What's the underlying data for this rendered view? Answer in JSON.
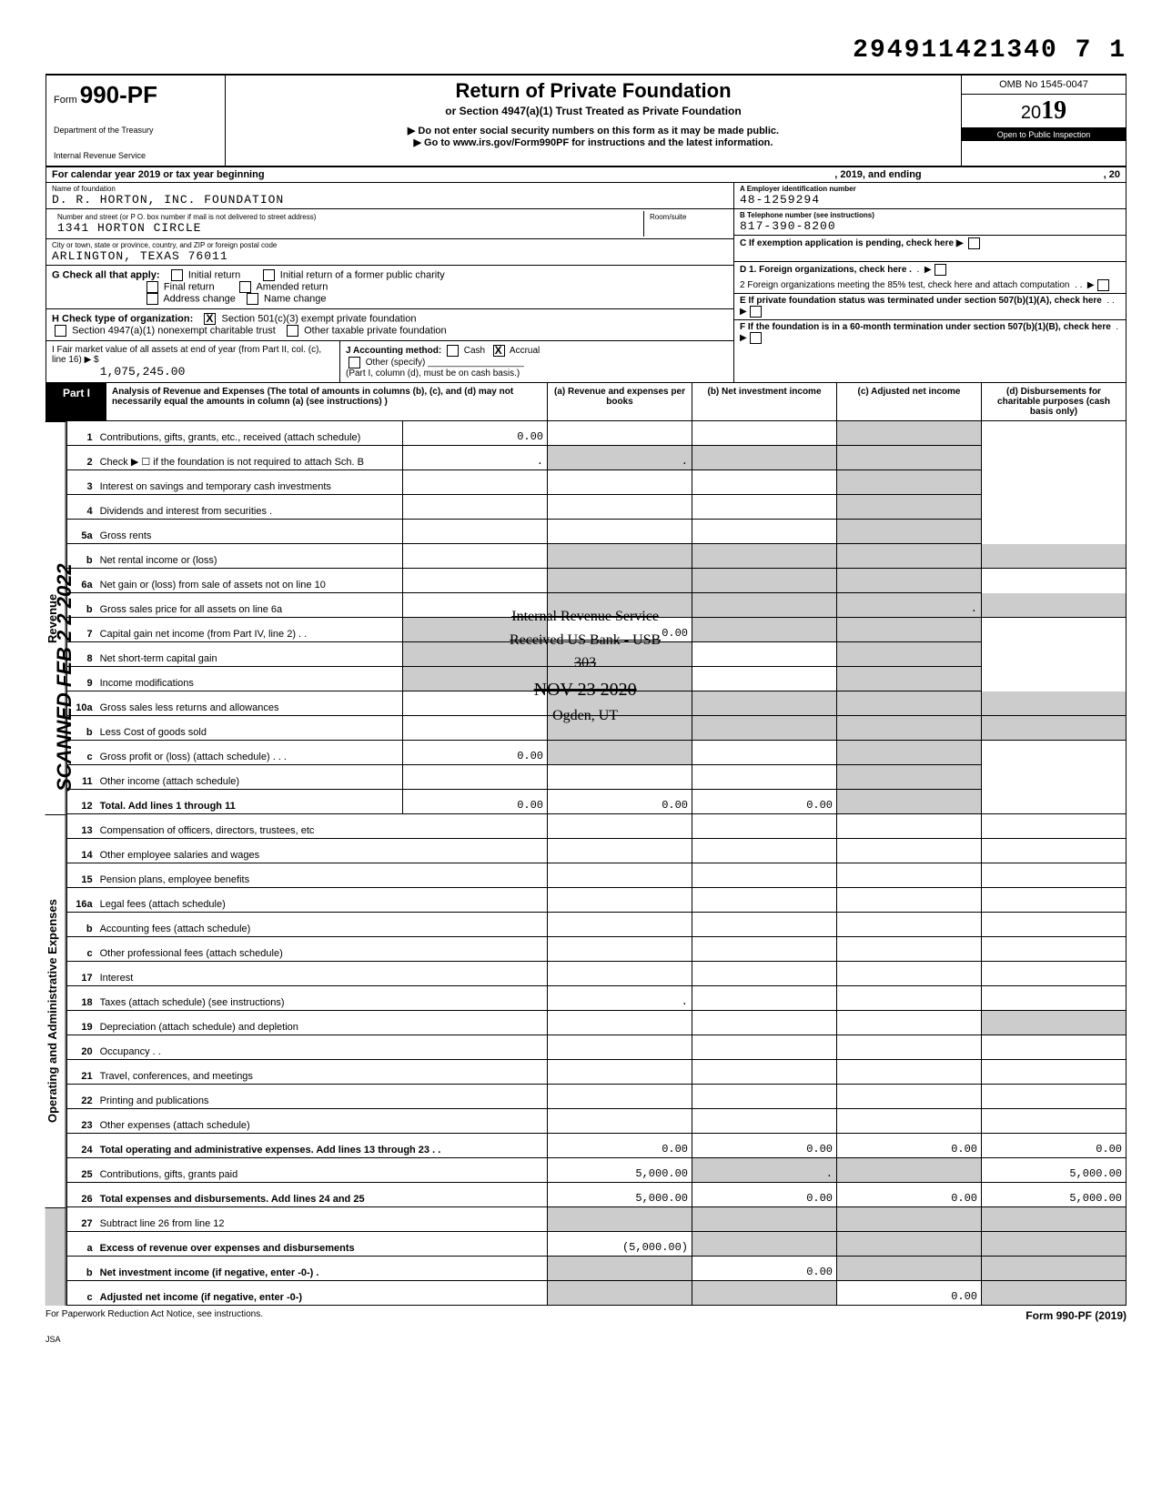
{
  "dln": "294911421340 7 1",
  "header": {
    "form_label": "Form",
    "form_no": "990-PF",
    "dept1": "Department of the Treasury",
    "dept2": "Internal Revenue Service",
    "title": "Return of Private Foundation",
    "subtitle": "or Section 4947(a)(1) Trust Treated as Private Foundation",
    "warn": "▶ Do not enter social security numbers on this form as it may be made public.",
    "goto": "▶ Go to www.irs.gov/Form990PF for instructions and the latest information.",
    "omb": "OMB No 1545-0047",
    "year_prefix": "20",
    "year_bold": "19",
    "open": "Open to Public Inspection"
  },
  "cal": {
    "a": "For calendar year 2019 or tax year beginning",
    "b": ", 2019, and ending",
    "c": ", 20"
  },
  "idblock": {
    "name_lbl": "Name of foundation",
    "name": "D. R. HORTON, INC. FOUNDATION",
    "addr_lbl": "Number and street (or P O. box number if mail is not delivered to street address)",
    "room_lbl": "Room/suite",
    "addr": "1341 HORTON CIRCLE",
    "city_lbl": "City or town, state or province, country, and ZIP or foreign postal code",
    "city": "ARLINGTON, TEXAS  76011",
    "ein_lbl": "A  Employer identification number",
    "ein": "48-1259294",
    "tel_lbl": "B  Telephone number (see instructions)",
    "tel": "817-390-8200",
    "c_lbl": "C  If exemption application is pending, check here ▶"
  },
  "g": {
    "lead": "G   Check all that apply:",
    "o1": "Initial return",
    "o2": "Initial return of a former public charity",
    "o3": "Final return",
    "o4": "Amended return",
    "o5": "Address change",
    "o6": "Name change"
  },
  "h": {
    "lead": "H   Check type of organization:",
    "o1": "Section 501(c)(3) exempt private foundation",
    "o2": "Section 4947(a)(1) nonexempt charitable trust",
    "o3": "Other taxable private foundation"
  },
  "i": {
    "lead": "I    Fair market value of all assets at end of year (from Part II, col. (c), line 16) ▶ $",
    "val": "1,075,245.00",
    "j": "J   Accounting method:",
    "j1": "Cash",
    "j2": "Accrual",
    "j3": "Other (specify)",
    "jnote": "(Part I, column (d), must be on cash basis.)"
  },
  "right_d": {
    "d1": "D  1. Foreign organizations, check here .",
    "d2": "2  Foreign organizations meeting the 85% test, check here and attach computation",
    "e": "E   If private foundation status was terminated under section 507(b)(1)(A), check here",
    "f": "F   If the foundation is in a 60-month termination under section 507(b)(1)(B), check here"
  },
  "p1": {
    "part": "Part I",
    "desc": "Analysis of Revenue and Expenses (The total of amounts in columns (b), (c), and (d) may not necessarily equal the amounts in column (a) (see instructions) )",
    "cols": [
      "(a) Revenue and expenses per books",
      "(b) Net investment income",
      "(c) Adjusted net income",
      "(d) Disbursements for charitable purposes (cash basis only)"
    ]
  },
  "rows": [
    {
      "n": "1",
      "l": "Contributions, gifts, grants, etc., received (attach schedule)",
      "a": "0.00",
      "b": "",
      "c": "",
      "d": "",
      "shade_d": true
    },
    {
      "n": "2",
      "l": "Check ▶ ☐ if the foundation is not required to attach Sch. B",
      "a": ".",
      "b": ".",
      "c": "",
      "d": "",
      "shade_bcd": true
    },
    {
      "n": "3",
      "l": "Interest on savings and temporary cash investments",
      "a": "",
      "b": "",
      "c": "",
      "d": "",
      "shade_d": true
    },
    {
      "n": "4",
      "l": "Dividends and interest from securities  .",
      "a": "",
      "b": "",
      "c": "",
      "d": "",
      "shade_d": true
    },
    {
      "n": "5a",
      "l": "Gross rents",
      "a": "",
      "b": "",
      "c": "",
      "d": "",
      "shade_d": true
    },
    {
      "n": "b",
      "l": "Net rental income or (loss)",
      "sub": "",
      "shade_abcd": true
    },
    {
      "n": "6a",
      "l": "Net gain or (loss) from sale of assets not on line 10",
      "a": "",
      "b": "",
      "c": "",
      "d": "",
      "shade_bcd": true
    },
    {
      "n": "b",
      "l": "Gross sales price for all assets on line 6a",
      "sub": "",
      "shade_abcd": true,
      "c": ".",
      "shade_b": false
    },
    {
      "n": "7",
      "l": "Capital gain net income (from Part IV, line 2)   .   .",
      "a": "",
      "b": "0.00",
      "c": "",
      "d": "",
      "shade_a": true,
      "shade_cd": true
    },
    {
      "n": "8",
      "l": "Net short-term capital gain",
      "a": "",
      "b": "",
      "c": "",
      "d": "",
      "shade_ab": true,
      "shade_d": true
    },
    {
      "n": "9",
      "l": "Income modifications",
      "a": "",
      "b": "",
      "c": "",
      "d": "",
      "shade_ab": true,
      "shade_d": true
    },
    {
      "n": "10a",
      "l": "Gross sales less returns and allowances",
      "sub": "",
      "shade_abcd": true
    },
    {
      "n": "b",
      "l": "Less  Cost of goods sold",
      "sub": "",
      "shade_abcd": true
    },
    {
      "n": "c",
      "l": "Gross profit or (loss) (attach schedule)   .   .   .",
      "a": "0.00",
      "b": "",
      "c": "",
      "d": "",
      "shade_b": true,
      "shade_d": true
    },
    {
      "n": "11",
      "l": "Other income (attach schedule)",
      "a": "",
      "b": "",
      "c": "",
      "d": "",
      "shade_d": true
    },
    {
      "n": "12",
      "l": "Total. Add lines 1 through 11",
      "a": "0.00",
      "b": "0.00",
      "c": "0.00",
      "d": "",
      "bold": true,
      "shade_d": true
    }
  ],
  "exp_rows": [
    {
      "n": "13",
      "l": "Compensation of officers, directors, trustees, etc"
    },
    {
      "n": "14",
      "l": "Other employee salaries and wages"
    },
    {
      "n": "15",
      "l": "Pension plans, employee benefits"
    },
    {
      "n": "16a",
      "l": "Legal fees (attach schedule)"
    },
    {
      "n": "b",
      "l": "Accounting fees (attach schedule)"
    },
    {
      "n": "c",
      "l": "Other professional fees (attach schedule)"
    },
    {
      "n": "17",
      "l": "Interest"
    },
    {
      "n": "18",
      "l": "Taxes (attach schedule) (see instructions)",
      "a": "."
    },
    {
      "n": "19",
      "l": "Depreciation (attach schedule) and depletion",
      "shade_d": true
    },
    {
      "n": "20",
      "l": "Occupancy  .   ."
    },
    {
      "n": "21",
      "l": "Travel, conferences, and meetings"
    },
    {
      "n": "22",
      "l": "Printing and publications"
    },
    {
      "n": "23",
      "l": "Other expenses (attach schedule)"
    },
    {
      "n": "24",
      "l": "Total operating and administrative expenses. Add lines 13 through 23 .  .",
      "a": "0.00",
      "b": "0.00",
      "c": "0.00",
      "d": "0.00",
      "bold": true
    },
    {
      "n": "25",
      "l": "Contributions, gifts, grants paid",
      "a": "5,000.00",
      "b": ".",
      "c": "",
      "d": "5,000.00",
      "shade_bc": true
    },
    {
      "n": "26",
      "l": "Total expenses and disbursements. Add lines 24 and 25",
      "a": "5,000.00",
      "b": "0.00",
      "c": "0.00",
      "d": "5,000.00",
      "bold": true
    }
  ],
  "bot_rows": [
    {
      "n": "27",
      "l": "Subtract line 26 from line 12",
      "shade_all": true
    },
    {
      "n": "a",
      "l": "Excess of revenue over expenses and disbursements",
      "a": "(5,000.00)",
      "bold": true,
      "shade_bcd": true
    },
    {
      "n": "b",
      "l": "Net investment income (if negative, enter -0-)  .",
      "b": "0.00",
      "bold": true,
      "shade_a": true,
      "shade_cd": true
    },
    {
      "n": "c",
      "l": "Adjusted net income (if negative, enter -0-)",
      "c": "0.00",
      "bold": true,
      "shade_ab": true,
      "shade_d": true
    }
  ],
  "vtabs": {
    "rev": "Revenue",
    "exp": "Operating and Administrative Expenses"
  },
  "scanned": "SCANNED FEB 2 2 2022",
  "stamp": {
    "l1": "Internal Revenue Service",
    "l2": "Received US Bank - USB",
    "l3": "303",
    "l4": "NOV 23 2020",
    "l5": "Ogden, UT"
  },
  "footer": {
    "left": "For Paperwork Reduction Act Notice, see instructions.",
    "right": "Form 990-PF (2019)",
    "jsa": "JSA"
  }
}
